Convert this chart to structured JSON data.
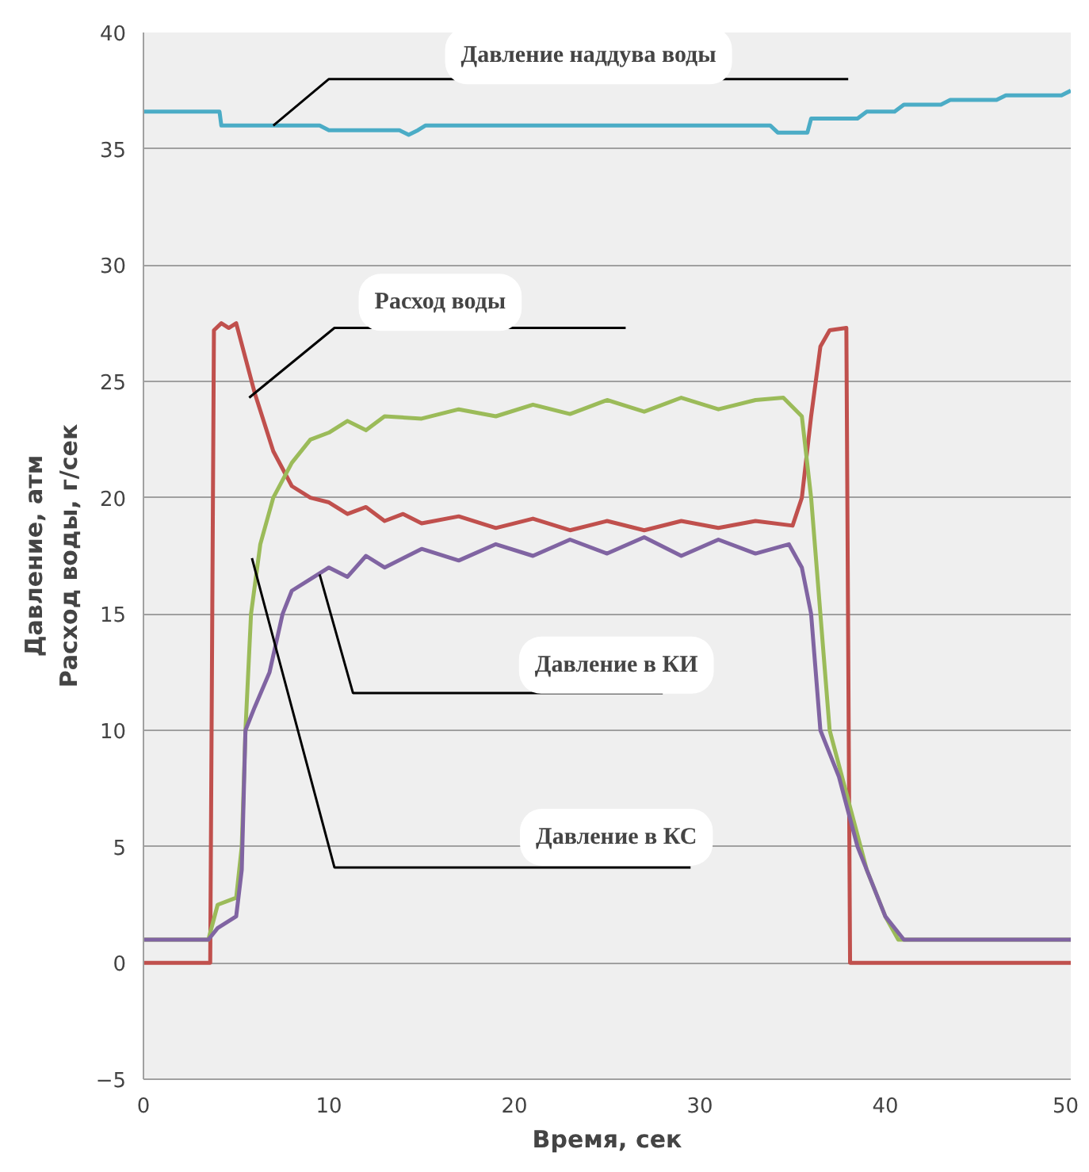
{
  "chart_data": {
    "type": "line",
    "xlabel": "Время, сек",
    "ylabel": "Давление, атм\nРасход воды, г/сек",
    "xlim": [
      0,
      50
    ],
    "ylim": [
      -5,
      40
    ],
    "xticks": [
      0,
      10,
      20,
      30,
      40,
      50
    ],
    "yticks": [
      -5,
      0,
      5,
      10,
      15,
      20,
      25,
      30,
      35,
      40
    ],
    "grid": "y",
    "marker": "none",
    "line_style": "solid",
    "series": [
      {
        "color": "#4bacc6",
        "x": [
          0,
          4.1,
          4.2,
          9.5,
          10,
          13.8,
          14.3,
          14.8,
          15.2,
          33.8,
          34.2,
          35.8,
          36,
          38.5,
          39,
          40.5,
          41,
          43,
          43.5,
          46,
          46.5,
          49.5,
          50
        ],
        "values": [
          36.6,
          36.6,
          36.0,
          36.0,
          35.8,
          35.8,
          35.6,
          35.8,
          36.0,
          36.0,
          35.7,
          35.7,
          36.3,
          36.3,
          36.6,
          36.6,
          36.9,
          36.9,
          37.1,
          37.1,
          37.3,
          37.3,
          37.5
        ]
      },
      {
        "color": "#c0504d",
        "x": [
          0,
          3.6,
          3.8,
          4.2,
          4.6,
          5.0,
          5.5,
          6,
          7,
          8,
          9,
          10,
          11,
          12,
          13,
          14,
          15,
          17,
          19,
          21,
          23,
          25,
          27,
          29,
          31,
          33,
          35,
          35.5,
          36,
          36.5,
          37,
          37.9,
          38.1,
          50
        ],
        "values": [
          0,
          0,
          27.2,
          27.5,
          27.3,
          27.5,
          26.0,
          24.5,
          22.0,
          20.5,
          20.0,
          19.8,
          19.3,
          19.6,
          19.0,
          19.3,
          18.9,
          19.2,
          18.7,
          19.1,
          18.6,
          19.0,
          18.6,
          19.0,
          18.7,
          19.0,
          18.8,
          20.0,
          23.5,
          26.5,
          27.2,
          27.3,
          0,
          0
        ]
      },
      {
        "color": "#9bbb59",
        "x": [
          0,
          3.5,
          4,
          5.0,
          5.3,
          5.5,
          5.8,
          6.3,
          7,
          8,
          9,
          10,
          11,
          12,
          13,
          15,
          17,
          19,
          21,
          23,
          25,
          27,
          29,
          31,
          33,
          34.5,
          35.5,
          36,
          36.5,
          37,
          38,
          39,
          40,
          40.7,
          50
        ],
        "values": [
          1.0,
          1.0,
          2.5,
          2.8,
          5.0,
          10.0,
          15.0,
          18.0,
          20.0,
          21.5,
          22.5,
          22.8,
          23.3,
          22.9,
          23.5,
          23.4,
          23.8,
          23.5,
          24.0,
          23.6,
          24.2,
          23.7,
          24.3,
          23.8,
          24.2,
          24.3,
          23.5,
          20.0,
          15.0,
          10.0,
          7.0,
          4.0,
          2.0,
          1.0,
          1.0
        ]
      },
      {
        "color": "#8064a2",
        "x": [
          0,
          3.5,
          4,
          5.0,
          5.3,
          5.5,
          6,
          6.8,
          7.5,
          8,
          9,
          10,
          11,
          12,
          13,
          15,
          17,
          19,
          21,
          23,
          25,
          27,
          29,
          31,
          33,
          34.8,
          35.5,
          36,
          36.5,
          37.5,
          38.5,
          40,
          41,
          50
        ],
        "values": [
          1.0,
          1.0,
          1.5,
          2.0,
          4.0,
          10.0,
          11.0,
          12.5,
          15.0,
          16.0,
          16.5,
          17.0,
          16.6,
          17.5,
          17.0,
          17.8,
          17.3,
          18.0,
          17.5,
          18.2,
          17.6,
          18.3,
          17.5,
          18.2,
          17.6,
          18.0,
          17.0,
          15.0,
          10.0,
          8.0,
          5.0,
          2.0,
          1.0,
          1.0
        ]
      }
    ],
    "annotations": [
      {
        "text": "Давление наддува воды",
        "x": 7,
        "y": 36
      },
      {
        "text": "Расход воды",
        "x": 5.7,
        "y": 24.3
      },
      {
        "text": "Давление в КИ",
        "x": 9.5,
        "y": 16.7
      },
      {
        "text": "Давление в КС",
        "x": 5.85,
        "y": 17.4
      }
    ]
  }
}
